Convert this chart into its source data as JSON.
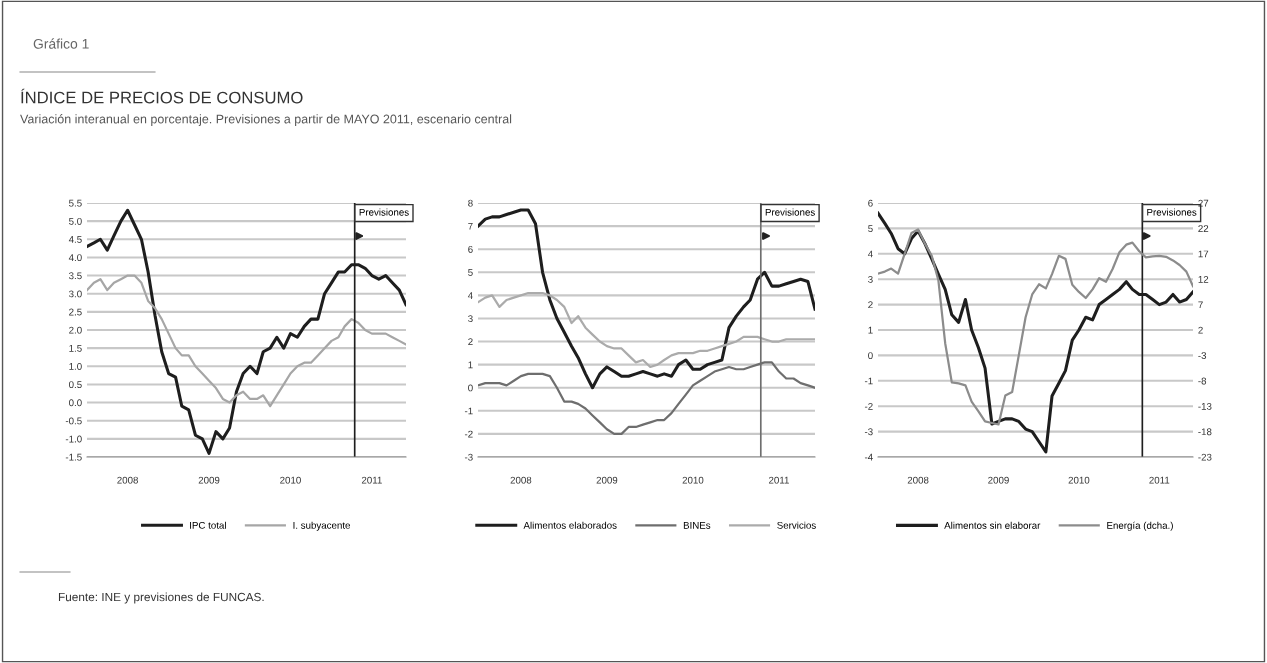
{
  "chart_data": [
    {
      "type": "line",
      "title": "ÍNDICE DE PRECIOS DE CONSUMO",
      "subtitle": "Variación interanual en porcentaje. Previsiones a partir de MAYO 2011, escenario central",
      "annotations": [
        "Gráfico 1",
        "Fuente: INE y previsiones de FUNCAS."
      ],
      "x": [
        "2008-01",
        "2008-02",
        "2008-03",
        "2008-04",
        "2008-05",
        "2008-06",
        "2008-07",
        "2008-08",
        "2008-09",
        "2008-10",
        "2008-11",
        "2008-12",
        "2009-01",
        "2009-02",
        "2009-03",
        "2009-04",
        "2009-05",
        "2009-06",
        "2009-07",
        "2009-08",
        "2009-09",
        "2009-10",
        "2009-11",
        "2009-12",
        "2010-01",
        "2010-02",
        "2010-03",
        "2010-04",
        "2010-05",
        "2010-06",
        "2010-07",
        "2010-08",
        "2010-09",
        "2010-10",
        "2010-11",
        "2010-12",
        "2011-01",
        "2011-02",
        "2011-03",
        "2011-04",
        "2011-05",
        "2011-06",
        "2011-07",
        "2011-08",
        "2011-09",
        "2011-10",
        "2011-11",
        "2011-12"
      ],
      "series": [
        {
          "name": "IPC total",
          "color": "#1e1e1e",
          "values": [
            4.3,
            4.4,
            4.5,
            4.2,
            4.6,
            5.0,
            5.3,
            4.9,
            4.5,
            3.6,
            2.4,
            1.4,
            0.8,
            0.7,
            -0.1,
            -0.2,
            -0.9,
            -1.0,
            -1.4,
            -0.8,
            -1.0,
            -0.7,
            0.3,
            0.8,
            1.0,
            0.8,
            1.4,
            1.5,
            1.8,
            1.5,
            1.9,
            1.8,
            2.1,
            2.3,
            2.3,
            3.0,
            3.3,
            3.6,
            3.6,
            3.8,
            3.8,
            3.7,
            3.5,
            3.4,
            3.5,
            3.3,
            3.1,
            2.7
          ]
        },
        {
          "name": "I. subyacente",
          "color": "#a6a6a6",
          "values": [
            3.1,
            3.3,
            3.4,
            3.1,
            3.3,
            3.4,
            3.5,
            3.5,
            3.3,
            2.8,
            2.6,
            2.3,
            1.9,
            1.5,
            1.3,
            1.3,
            1.0,
            0.8,
            0.6,
            0.4,
            0.1,
            0.0,
            0.2,
            0.3,
            0.1,
            0.1,
            0.2,
            -0.1,
            0.2,
            0.5,
            0.8,
            1.0,
            1.1,
            1.1,
            1.3,
            1.5,
            1.7,
            1.8,
            2.1,
            2.3,
            2.2,
            2.0,
            1.9,
            1.9,
            1.9,
            1.8,
            1.7,
            1.6
          ]
        }
      ],
      "xlim": [
        "2008-01",
        "2011-12"
      ],
      "xticks": [
        {
          "value": "2008-07",
          "label": "2008"
        },
        {
          "value": "2009-07",
          "label": "2009"
        },
        {
          "value": "2010-07",
          "label": "2010"
        },
        {
          "value": "2011-07",
          "label": "2011"
        }
      ],
      "ylim": [
        -1.5,
        5.5
      ],
      "yticks": [
        {
          "value": -1.5,
          "label": "-1.5"
        },
        {
          "value": -1.0,
          "label": "-1.0"
        },
        {
          "value": -0.5,
          "label": "-0.5"
        },
        {
          "value": 0,
          "label": "0.0"
        },
        {
          "value": 0.5,
          "label": "0.5"
        },
        {
          "value": 1,
          "label": "1.0"
        },
        {
          "value": 1.5,
          "label": "1.5"
        },
        {
          "value": 2,
          "label": "2.0"
        },
        {
          "value": 2.5,
          "label": "2.5"
        },
        {
          "value": 3,
          "label": "3.0"
        },
        {
          "value": 3.5,
          "label": "3.5"
        },
        {
          "value": 4,
          "label": "4.0"
        },
        {
          "value": 4.5,
          "label": "4.5"
        },
        {
          "value": 5,
          "label": "5.0"
        },
        {
          "value": 5.5,
          "label": "5.5"
        }
      ],
      "ref_lines": [
        {
          "axis": "x",
          "value": "2011-04-15",
          "label": "Previsiones",
          "color": "#1e1e1e"
        }
      ],
      "grid": "y",
      "legend": "bottom",
      "marker": "none",
      "line_style": "solid"
    },
    {
      "type": "line",
      "x": [
        "2008-01",
        "2008-02",
        "2008-03",
        "2008-04",
        "2008-05",
        "2008-06",
        "2008-07",
        "2008-08",
        "2008-09",
        "2008-10",
        "2008-11",
        "2008-12",
        "2009-01",
        "2009-02",
        "2009-03",
        "2009-04",
        "2009-05",
        "2009-06",
        "2009-07",
        "2009-08",
        "2009-09",
        "2009-10",
        "2009-11",
        "2009-12",
        "2010-01",
        "2010-02",
        "2010-03",
        "2010-04",
        "2010-05",
        "2010-06",
        "2010-07",
        "2010-08",
        "2010-09",
        "2010-10",
        "2010-11",
        "2010-12",
        "2011-01",
        "2011-02",
        "2011-03",
        "2011-04",
        "2011-05",
        "2011-06",
        "2011-07",
        "2011-08",
        "2011-09",
        "2011-10",
        "2011-11",
        "2011-12"
      ],
      "series": [
        {
          "name": "Alimentos elaborados",
          "color": "#1e1e1e",
          "values": [
            7.0,
            7.3,
            7.4,
            7.4,
            7.5,
            7.6,
            7.7,
            7.7,
            7.1,
            5.0,
            3.8,
            3.0,
            2.4,
            1.8,
            1.3,
            0.6,
            0.0,
            0.6,
            0.9,
            0.7,
            0.5,
            0.5,
            0.6,
            0.7,
            0.6,
            0.5,
            0.6,
            0.5,
            1.0,
            1.2,
            0.8,
            0.8,
            1.0,
            1.1,
            1.2,
            2.6,
            3.1,
            3.5,
            3.8,
            4.7,
            5.0,
            4.4,
            4.4,
            4.5,
            4.6,
            4.7,
            4.6,
            3.4
          ]
        },
        {
          "name": "BINEs",
          "color": "#6e6e6e",
          "values": [
            0.1,
            0.2,
            0.2,
            0.2,
            0.1,
            0.3,
            0.5,
            0.6,
            0.6,
            0.6,
            0.5,
            0.0,
            -0.6,
            -0.6,
            -0.7,
            -0.9,
            -1.2,
            -1.5,
            -1.8,
            -2.0,
            -2.0,
            -1.7,
            -1.7,
            -1.6,
            -1.5,
            -1.4,
            -1.4,
            -1.1,
            -0.7,
            -0.3,
            0.1,
            0.3,
            0.5,
            0.7,
            0.8,
            0.9,
            0.8,
            0.8,
            0.9,
            1.0,
            1.1,
            1.1,
            0.7,
            0.4,
            0.4,
            0.2,
            0.1,
            0.0
          ]
        },
        {
          "name": "Servicios",
          "color": "#ababab",
          "values": [
            3.7,
            3.9,
            4.0,
            3.5,
            3.8,
            3.9,
            4.0,
            4.1,
            4.1,
            4.1,
            4.0,
            3.8,
            3.5,
            2.8,
            3.1,
            2.6,
            2.3,
            2.0,
            1.8,
            1.7,
            1.7,
            1.4,
            1.1,
            1.2,
            0.9,
            1.0,
            1.2,
            1.4,
            1.5,
            1.5,
            1.5,
            1.6,
            1.6,
            1.7,
            1.8,
            1.9,
            2.0,
            2.2,
            2.2,
            2.2,
            2.1,
            2.0,
            2.0,
            2.1,
            2.1,
            2.1,
            2.1,
            2.1
          ]
        }
      ],
      "xlim": [
        "2008-01",
        "2011-12"
      ],
      "xticks": [
        {
          "value": "2008-07",
          "label": "2008"
        },
        {
          "value": "2009-07",
          "label": "2009"
        },
        {
          "value": "2010-07",
          "label": "2010"
        },
        {
          "value": "2011-07",
          "label": "2011"
        }
      ],
      "ylim": [
        -3,
        8
      ],
      "yticks": [
        -3,
        -2,
        -1,
        0,
        1,
        2,
        3,
        4,
        5,
        6,
        7,
        8
      ],
      "ref_lines": [
        {
          "axis": "x",
          "value": "2011-04-15",
          "label": "Previsiones",
          "color": "#6e6e6e"
        }
      ],
      "grid": "y",
      "legend": "bottom",
      "marker": "none",
      "line_style": "solid"
    },
    {
      "type": "line",
      "x": [
        "2008-01",
        "2008-02",
        "2008-03",
        "2008-04",
        "2008-05",
        "2008-06",
        "2008-07",
        "2008-08",
        "2008-09",
        "2008-10",
        "2008-11",
        "2008-12",
        "2009-01",
        "2009-02",
        "2009-03",
        "2009-04",
        "2009-05",
        "2009-06",
        "2009-07",
        "2009-08",
        "2009-09",
        "2009-10",
        "2009-11",
        "2009-12",
        "2010-01",
        "2010-02",
        "2010-03",
        "2010-04",
        "2010-05",
        "2010-06",
        "2010-07",
        "2010-08",
        "2010-09",
        "2010-10",
        "2010-11",
        "2010-12",
        "2011-01",
        "2011-02",
        "2011-03",
        "2011-04",
        "2011-05",
        "2011-06",
        "2011-07",
        "2011-08",
        "2011-09",
        "2011-10",
        "2011-11",
        "2011-12"
      ],
      "series": [
        {
          "name": "Alimentos sin elaborar",
          "color": "#1e1e1e",
          "values": [
            5.6,
            5.2,
            4.8,
            4.2,
            4.0,
            4.6,
            4.9,
            4.4,
            3.8,
            3.2,
            2.6,
            1.6,
            1.3,
            2.2,
            1.0,
            0.3,
            -0.5,
            -2.7,
            -2.6,
            -2.5,
            -2.5,
            -2.6,
            -2.9,
            -3.0,
            -3.4,
            -3.8,
            -1.6,
            -1.1,
            -0.6,
            0.6,
            1.0,
            1.5,
            1.4,
            2.0,
            2.2,
            2.4,
            2.6,
            2.9,
            2.6,
            2.4,
            2.4,
            2.2,
            2.0,
            2.1,
            2.4,
            2.1,
            2.2,
            2.5
          ]
        },
        {
          "name": "Energía (dcha.)",
          "color": "#8c8c8c",
          "axis": "y2",
          "values": [
            13.1,
            13.5,
            14.1,
            13.1,
            17.0,
            21.1,
            21.8,
            19.0,
            16.6,
            11.8,
            -0.6,
            -8.3,
            -8.5,
            -8.9,
            -12.1,
            -14.0,
            -16.0,
            -16.3,
            -16.6,
            -10.9,
            -10.2,
            -3.0,
            4.5,
            9.0,
            11.0,
            10.2,
            13.0,
            16.6,
            16.0,
            10.9,
            9.5,
            8.3,
            10.0,
            12.2,
            11.5,
            14.0,
            17.3,
            18.8,
            19.2,
            17.5,
            16.3,
            16.5,
            16.6,
            16.4,
            15.7,
            14.8,
            13.5,
            10.6
          ]
        }
      ],
      "xlim": [
        "2008-01",
        "2011-12"
      ],
      "xticks": [
        {
          "value": "2008-07",
          "label": "2008"
        },
        {
          "value": "2009-07",
          "label": "2009"
        },
        {
          "value": "2010-07",
          "label": "2010"
        },
        {
          "value": "2011-07",
          "label": "2011"
        }
      ],
      "ylim": [
        -4,
        6
      ],
      "yticks": [
        -4,
        -3,
        -2,
        -1,
        0,
        1,
        2,
        3,
        4,
        5,
        6
      ],
      "y2lim": [
        -23,
        27
      ],
      "y2ticks": [
        -23,
        -18,
        -13,
        -8,
        -3,
        2,
        7,
        12,
        17,
        22,
        27
      ],
      "ref_lines": [
        {
          "axis": "x",
          "value": "2011-04-15",
          "label": "Previsiones",
          "color": "#1e1e1e"
        }
      ],
      "grid": "y",
      "legend": "bottom",
      "marker": "none",
      "line_style": "solid"
    }
  ]
}
